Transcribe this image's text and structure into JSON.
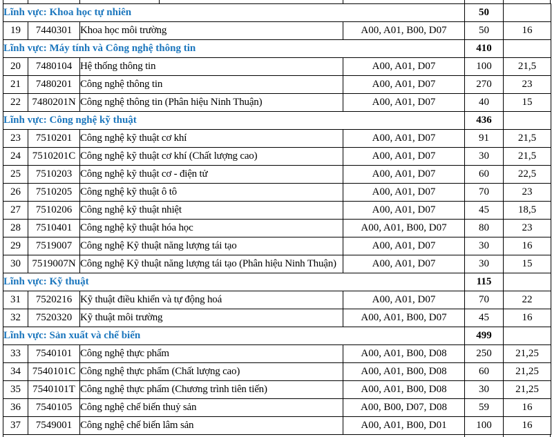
{
  "colors": {
    "section_text": "#1b76bd",
    "border": "#000000",
    "body_text": "#000000",
    "background": "#ffffff"
  },
  "table": {
    "columns": [
      "stt",
      "code",
      "name",
      "combos",
      "quota",
      "score"
    ],
    "sections": [
      {
        "label": "Lĩnh vực: Khoa học tự nhiên",
        "total_quota": "50",
        "rows": [
          {
            "stt": "19",
            "code": "7440301",
            "name": "Khoa học môi trường",
            "combos": "A00, A01, B00, D07",
            "quota": "50",
            "score": "16"
          }
        ]
      },
      {
        "label": "Lĩnh vực: Máy tính và Công nghệ thông tin",
        "total_quota": "410",
        "rows": [
          {
            "stt": "20",
            "code": "7480104",
            "name": "Hệ thống thông tin",
            "combos": "A00, A01, D07",
            "quota": "100",
            "score": "21,5"
          },
          {
            "stt": "21",
            "code": "7480201",
            "name": "Công nghệ thông tin",
            "combos": "A00, A01, D07",
            "quota": "270",
            "score": "23"
          },
          {
            "stt": "22",
            "code": "7480201N",
            "name": "Công nghệ thông tin (Phân hiệu Ninh Thuận)",
            "combos": "A00, A01, D07",
            "quota": "40",
            "score": "15"
          }
        ]
      },
      {
        "label": "Lĩnh vực: Công nghệ kỹ thuật",
        "total_quota": "436",
        "rows": [
          {
            "stt": "23",
            "code": "7510201",
            "name": "Công nghệ kỹ thuật cơ khí",
            "combos": "A00, A01, D07",
            "quota": "91",
            "score": "21,5"
          },
          {
            "stt": "24",
            "code": "7510201C",
            "name": "Công nghệ kỹ thuật cơ khí (Chất lượng cao)",
            "combos": "A00, A01, D07",
            "quota": "30",
            "score": "21,5"
          },
          {
            "stt": "25",
            "code": "7510203",
            "name": "Công nghệ kỹ thuật cơ - điện tử",
            "combos": "A00, A01, D07",
            "quota": "60",
            "score": "22,5"
          },
          {
            "stt": "26",
            "code": "7510205",
            "name": "Công nghệ kỹ thuật ô tô",
            "combos": "A00, A01, D07",
            "quota": "70",
            "score": "23"
          },
          {
            "stt": "27",
            "code": "7510206",
            "name": "Công nghệ kỹ thuật nhiệt",
            "combos": "A00, A01, D07",
            "quota": "45",
            "score": "18,5"
          },
          {
            "stt": "28",
            "code": "7510401",
            "name": "Công nghệ kỹ thuật hóa học",
            "combos": "A00, A01, B00, D07",
            "quota": "80",
            "score": "23"
          },
          {
            "stt": "29",
            "code": "7519007",
            "name": "Công nghệ Kỹ thuật năng lượng tái tạo",
            "combos": "A00, A01, D07",
            "quota": "30",
            "score": "16"
          },
          {
            "stt": "30",
            "code": "7519007N",
            "name": "Công nghệ Kỹ thuật năng lượng tái tạo (Phân hiệu Ninh Thuận)",
            "combos": "A00, A01, D07",
            "quota": "30",
            "score": "15"
          }
        ]
      },
      {
        "label": "Lĩnh vực: Kỹ thuật",
        "total_quota": "115",
        "rows": [
          {
            "stt": "31",
            "code": "7520216",
            "name": "Kỹ thuật điều khiển và tự động hoá",
            "combos": "A00, A01, D07",
            "quota": "70",
            "score": "22"
          },
          {
            "stt": "32",
            "code": "7520320",
            "name": "Kỹ thuật môi trường",
            "combos": "A00, A01, B00, D07",
            "quota": "45",
            "score": "16"
          }
        ]
      },
      {
        "label": "Lĩnh vực: Sản xuất và chế biến",
        "total_quota": "499",
        "rows": [
          {
            "stt": "33",
            "code": "7540101",
            "name": "Công nghệ thực phẩm",
            "combos": "A00, A01, B00, D08",
            "quota": "250",
            "score": "21,25"
          },
          {
            "stt": "34",
            "code": "7540101C",
            "name": "Công nghệ thực phẩm (Chất lượng cao)",
            "combos": "A00, A01, B00, D08",
            "quota": "60",
            "score": "21,25"
          },
          {
            "stt": "35",
            "code": "7540101T",
            "name": "Công nghệ thực phẩm (Chương trình tiên tiến)",
            "combos": "A00, A01, B00, D08",
            "quota": "30",
            "score": "21,25"
          },
          {
            "stt": "36",
            "code": "7540105",
            "name": "Công nghệ chế biến thuỷ sản",
            "combos": "A00, B00, D07, D08",
            "quota": "59",
            "score": "16"
          },
          {
            "stt": "37",
            "code": "7549001",
            "name": "Công nghệ chế biến lâm sản",
            "combos": "A00, A01, B00, D01",
            "quota": "100",
            "score": "16"
          }
        ]
      }
    ]
  }
}
